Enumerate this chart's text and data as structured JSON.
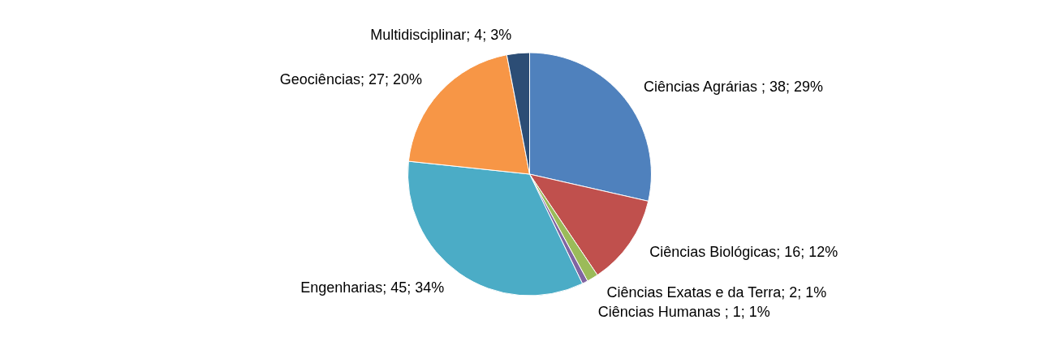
{
  "chart_data": {
    "type": "pie",
    "categories": [
      "Ciências Agrárias ",
      "Ciências Biológicas",
      "Ciências Exatas e da Terra",
      "Ciências Humanas ",
      "Engenharias",
      "Geociências",
      "Multidisciplinar"
    ],
    "values": [
      38,
      16,
      2,
      1,
      45,
      27,
      4
    ],
    "colors": [
      "#4f81bd",
      "#c0504d",
      "#9bbb59",
      "#8064a2",
      "#4bacc6",
      "#f79646",
      "#2c4d75"
    ],
    "value_labels": [
      "38; 29%",
      "16; 12%",
      "2; 1%",
      "1; 1%",
      "45; 34%",
      "27; 20%",
      "4; 3%"
    ]
  }
}
